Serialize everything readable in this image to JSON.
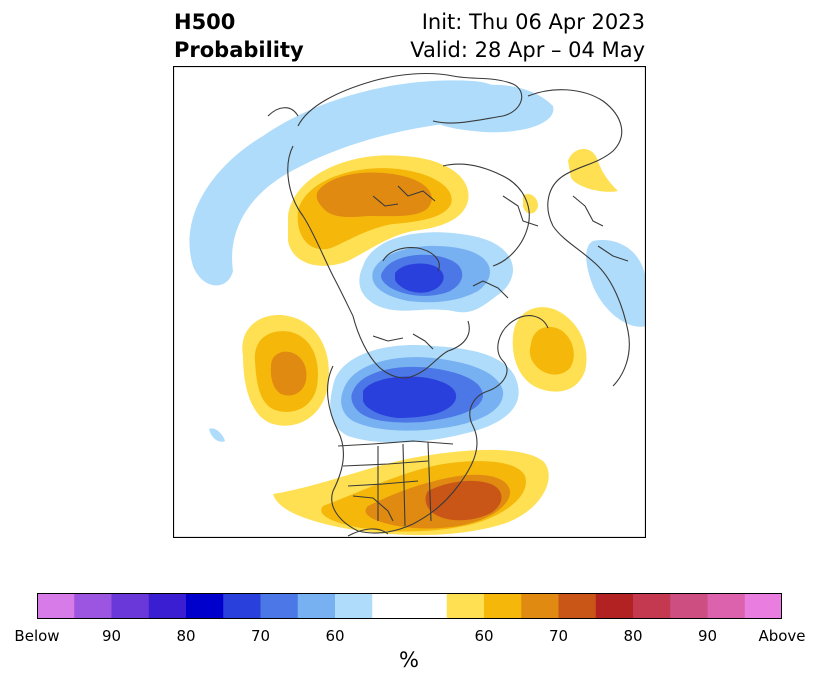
{
  "title": {
    "line1_left": "H500",
    "line2_left": "Probability",
    "line1_right": "Init: Thu 06 Apr 2023",
    "line2_right": "Valid: 28 Apr – 04 May"
  },
  "colorbar": {
    "unit_label": "%",
    "colors": [
      "#d67be8",
      "#9b55e0",
      "#6a38d8",
      "#3a1fd2",
      "#0000cc",
      "#2a40dc",
      "#4b78e6",
      "#78b1f1",
      "#aedcfa",
      "#ffffff",
      "#ffffff",
      "#fee052",
      "#f5b80a",
      "#e08a12",
      "#c95617",
      "#b32222",
      "#c43950",
      "#cd4f82",
      "#dc62ae",
      "#e97de0"
    ],
    "tick_labels": [
      "Below",
      "90",
      "80",
      "70",
      "60",
      "60",
      "70",
      "80",
      "90",
      "Above"
    ]
  },
  "map_colors": {
    "blue_light": "#aedcfa",
    "blue_2": "#78b1f1",
    "blue_3": "#4b78e6",
    "blue_4": "#2a40dc",
    "orange_light": "#fee052",
    "orange_2": "#f5b80a",
    "orange_3": "#e08a12",
    "orange_4": "#c95617",
    "coast": "#3a3a3a"
  }
}
